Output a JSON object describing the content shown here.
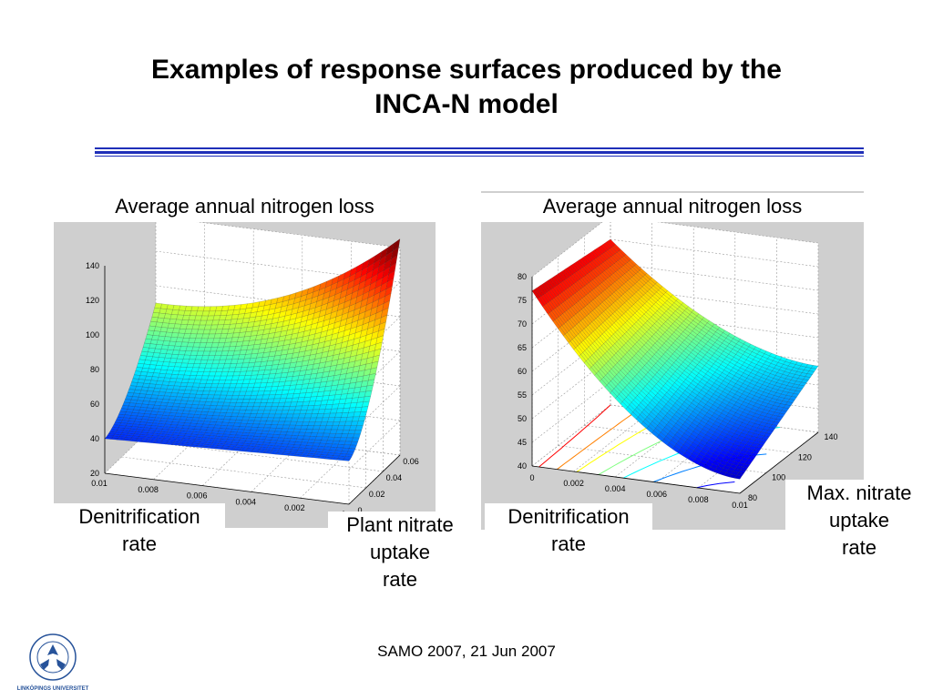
{
  "slide": {
    "title_line1": "Examples of response surfaces produced by the",
    "title_line2": "INCA-N model",
    "footer": "SAMO 2007, 21 Jun 2007",
    "logo_text": "LINKÖPINGS UNIVERSITET",
    "rule_color": "#1f2fb8"
  },
  "chart_data": [
    {
      "type": "surface",
      "title": "Average annual nitrogen loss",
      "x_label": "Denitrification rate",
      "y_label": "Plant nitrate uptake rate",
      "x_ticks": [
        "0.01",
        "0.008",
        "0.006",
        "0.004",
        "0.002",
        "0"
      ],
      "y_ticks": [
        "0",
        "0.02",
        "0.04",
        "0.06"
      ],
      "z_ticks": [
        "20",
        "40",
        "60",
        "80",
        "100",
        "120",
        "140"
      ],
      "zlim": [
        20,
        140
      ],
      "corner_values": {
        "x0.01_y0": 40,
        "x0_y0": 45,
        "x0.01_y0.06": 90,
        "x0_y0.06": 145
      },
      "colormap": "jet",
      "grid": true
    },
    {
      "type": "surface",
      "title": "Average annual nitrogen loss",
      "x_label": "Denitrification rate",
      "y_label": "Max. nitrate uptake rate",
      "x_ticks": [
        "0",
        "0.002",
        "0.004",
        "0.006",
        "0.008",
        "0.01"
      ],
      "y_ticks": [
        "80",
        "100",
        "120",
        "140"
      ],
      "z_ticks": [
        "40",
        "45",
        "50",
        "55",
        "60",
        "65",
        "70",
        "75",
        "80"
      ],
      "zlim": [
        40,
        80
      ],
      "corner_values": {
        "x0_y80": 77,
        "x0_y140": 75,
        "x0.01_y80": 43,
        "x0.01_y140": 54
      },
      "colormap": "jet",
      "contours_on_floor": true,
      "grid": true
    }
  ]
}
